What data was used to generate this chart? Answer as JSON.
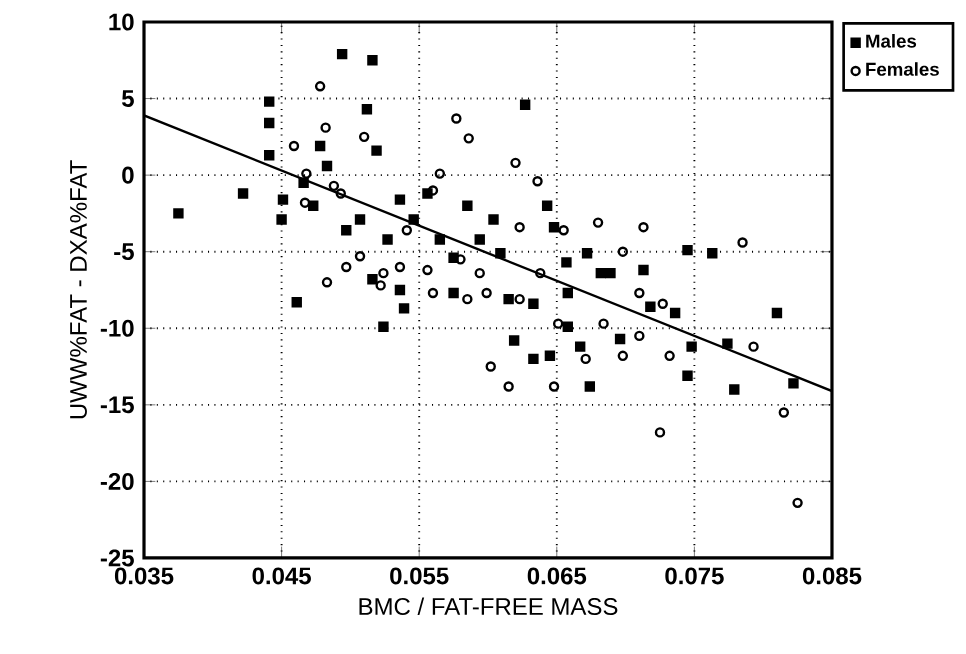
{
  "chart_data": {
    "type": "scatter",
    "xlabel": "BMC / FAT-FREE MASS",
    "ylabel": "UWW%FAT - DXA%FAT",
    "xlim": [
      0.035,
      0.085
    ],
    "ylim": [
      -25,
      10
    ],
    "xticks": [
      0.035,
      0.045,
      0.055,
      0.065,
      0.075,
      0.085
    ],
    "yticks": [
      -25,
      -20,
      -15,
      -10,
      -5,
      0,
      5,
      10
    ],
    "grid": true,
    "legend": "top right",
    "series": [
      {
        "name": "Males",
        "color": "#000000",
        "marker": "square",
        "x": [
          0.0375,
          0.0422,
          0.0441,
          0.0441,
          0.0441,
          0.0451,
          0.045,
          0.0461,
          0.0494,
          0.0516,
          0.0512,
          0.0519,
          0.0497,
          0.0516,
          0.0539,
          0.0524,
          0.0536,
          0.0556,
          0.0575,
          0.0585,
          0.0604,
          0.0627,
          0.0643,
          0.0648,
          0.0615,
          0.0633,
          0.0633,
          0.0645,
          0.0619,
          0.0674,
          0.0667,
          0.0682,
          0.0713,
          0.0718,
          0.0736,
          0.0745,
          0.0745,
          0.0763,
          0.0774,
          0.0779,
          0.081,
          0.0822,
          0.0478,
          0.0466,
          0.0473,
          0.0483,
          0.0507,
          0.0527,
          0.0536,
          0.0546,
          0.0565,
          0.0594,
          0.0609,
          0.0575,
          0.0658,
          0.0657,
          0.0672,
          0.0689,
          0.0658,
          0.0696,
          0.0748
        ],
        "values": [
          -2.5,
          -1.2,
          4.8,
          3.4,
          1.3,
          -1.6,
          -2.9,
          -8.3,
          7.9,
          7.5,
          4.3,
          1.6,
          -3.6,
          -6.8,
          -8.7,
          -9.9,
          -7.5,
          -1.2,
          -5.4,
          -2.0,
          -2.9,
          4.6,
          -2.0,
          -3.4,
          -8.1,
          -8.4,
          -12.0,
          -11.8,
          -10.8,
          -13.8,
          -11.2,
          -6.4,
          -6.2,
          -8.6,
          -9.0,
          -13.1,
          -4.9,
          -5.1,
          -11.0,
          -14.0,
          -9.0,
          -13.6,
          1.9,
          -0.5,
          -2.0,
          0.6,
          -2.9,
          -4.2,
          -1.6,
          -2.9,
          -4.2,
          -4.2,
          -5.1,
          -7.7,
          -7.7,
          -5.7,
          -5.1,
          -6.4,
          -9.9,
          -10.7,
          -11.2
        ]
      },
      {
        "name": "Females",
        "color": "#000000",
        "marker": "circle",
        "x": [
          0.0478,
          0.0482,
          0.051,
          0.0577,
          0.0586,
          0.0565,
          0.062,
          0.0636,
          0.0483,
          0.0497,
          0.0459,
          0.0468,
          0.0488,
          0.0524,
          0.0556,
          0.056,
          0.0585,
          0.0599,
          0.0594,
          0.0602,
          0.0615,
          0.0648,
          0.0651,
          0.0684,
          0.0698,
          0.071,
          0.0671,
          0.0732,
          0.0713,
          0.0698,
          0.068,
          0.0725,
          0.0785,
          0.0793,
          0.0815,
          0.0825,
          0.0655,
          0.0638,
          0.0623,
          0.058,
          0.0536,
          0.0507,
          0.0522,
          0.0467,
          0.0493,
          0.0541,
          0.056,
          0.0623,
          0.071,
          0.0727
        ],
        "values": [
          5.8,
          3.1,
          2.5,
          3.7,
          2.4,
          0.1,
          0.8,
          -0.4,
          -7.0,
          -6.0,
          1.9,
          0.1,
          -0.7,
          -6.4,
          -6.2,
          -7.7,
          -8.1,
          -7.7,
          -6.4,
          -12.5,
          -13.8,
          -13.8,
          -9.7,
          -9.7,
          -11.8,
          -10.5,
          -12.0,
          -11.8,
          -3.4,
          -5.0,
          -3.1,
          -16.8,
          -4.4,
          -11.2,
          -15.5,
          -21.4,
          -3.6,
          -6.4,
          -8.1,
          -5.5,
          -6.0,
          -5.3,
          -7.2,
          -1.8,
          -1.2,
          -3.6,
          -1.0,
          -3.4,
          -7.7,
          -8.4
        ]
      },
      {
        "type": "line",
        "color": "#000000",
        "x": [
          0.035,
          0.085
        ],
        "values": [
          3.9,
          -14.1
        ]
      }
    ]
  }
}
